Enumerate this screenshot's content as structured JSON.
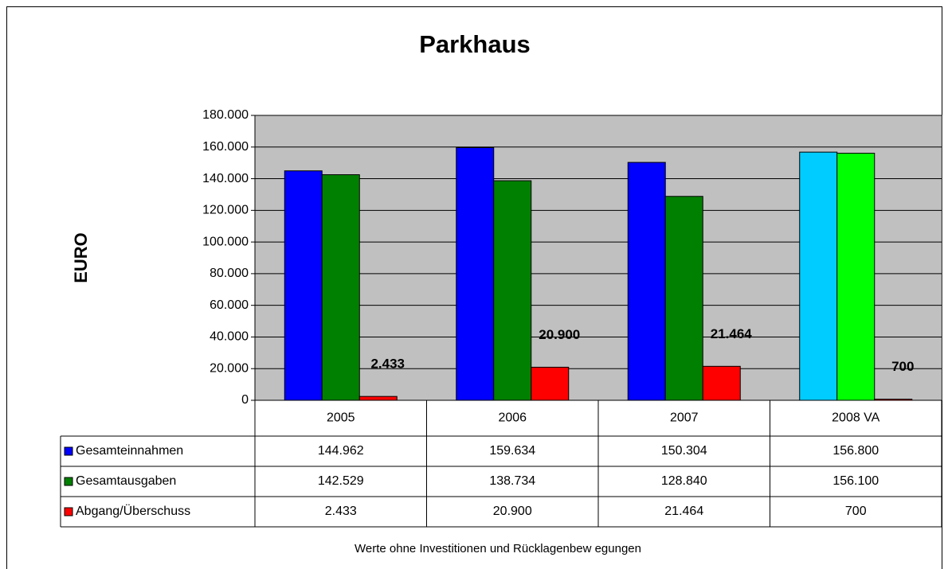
{
  "chart_data": {
    "type": "bar",
    "title": "Parkhaus",
    "y_label": "EURO",
    "footnote": "Werte ohne Investitionen und Rücklagenbew egungen",
    "categories": [
      "2005",
      "2006",
      "2007",
      "2008 VA"
    ],
    "series": [
      {
        "name": "Gesamteinnahmen",
        "colors": [
          "#0000ff",
          "#0000ff",
          "#0000ff",
          "#00ccff"
        ],
        "values": [
          144962,
          159634,
          150304,
          156800
        ],
        "value_labels": [
          "144.962",
          "159.634",
          "150.304",
          "156.800"
        ],
        "data_labels": false
      },
      {
        "name": "Gesamtausgaben",
        "colors": [
          "#008000",
          "#008000",
          "#008000",
          "#00ff00"
        ],
        "values": [
          142529,
          138734,
          128840,
          156100
        ],
        "value_labels": [
          "142.529",
          "138.734",
          "128.840",
          "156.100"
        ],
        "data_labels": false
      },
      {
        "name": "Abgang/Überschuss",
        "colors": [
          "#ff0000",
          "#ff0000",
          "#ff0000",
          "#ff0000"
        ],
        "values": [
          2433,
          20900,
          21464,
          700
        ],
        "value_labels": [
          "2.433",
          "20.900",
          "21.464",
          "700"
        ],
        "data_labels": true
      }
    ],
    "ylim": [
      0,
      180000
    ],
    "yticks": [
      0,
      {
        "value": 20000,
        "label": "20.000"
      },
      {
        "value": 40000,
        "label": "40.000"
      },
      {
        "value": 60000,
        "label": "60.000"
      },
      {
        "value": 80000,
        "label": "80.000"
      },
      {
        "value": 100000,
        "label": "100.000"
      },
      {
        "value": 120000,
        "label": "120.000"
      },
      {
        "value": 140000,
        "label": "140.000"
      },
      {
        "value": 160000,
        "label": "160.000"
      },
      {
        "value": 180000,
        "label": "180.000"
      }
    ],
    "grid": true,
    "plot_background": "#c0c0c0",
    "data_table": true
  }
}
